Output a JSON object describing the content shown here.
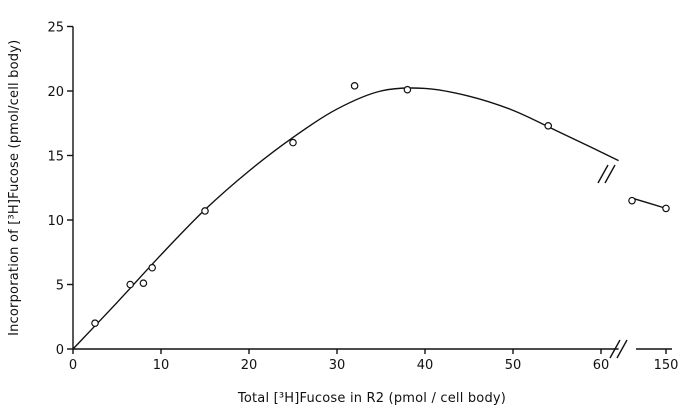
{
  "chart_data": {
    "type": "scatter",
    "xlabel": "Total [³H]Fucose in R2 (pmol / cell body)",
    "ylabel": "Incorporation of [³H]Fucose (pmol/cell body)",
    "ylim": [
      0,
      25
    ],
    "xlim_main": [
      0,
      62
    ],
    "x_break_ticks": [
      150
    ],
    "x_ticks": [
      0,
      10,
      20,
      30,
      40,
      50,
      60
    ],
    "y_ticks": [
      0,
      5,
      10,
      15,
      20,
      25
    ],
    "grid": false,
    "series": [
      {
        "marker": "open-circle",
        "points": [
          {
            "x": 2.5,
            "y": 2.0
          },
          {
            "x": 6.5,
            "y": 5.0
          },
          {
            "x": 8.0,
            "y": 5.1
          },
          {
            "x": 9.0,
            "y": 6.3
          },
          {
            "x": 15.0,
            "y": 10.7
          },
          {
            "x": 25.0,
            "y": 16.0
          },
          {
            "x": 32.0,
            "y": 20.4
          },
          {
            "x": 38.0,
            "y": 20.1
          },
          {
            "x": 54.0,
            "y": 17.3
          },
          {
            "x": 146.0,
            "y": 11.5
          },
          {
            "x": 150.0,
            "y": 10.9
          }
        ]
      }
    ],
    "fitted_curve": {
      "points": [
        {
          "x": 0,
          "y": 0
        },
        {
          "x": 5,
          "y": 3.6
        },
        {
          "x": 10,
          "y": 7.3
        },
        {
          "x": 15,
          "y": 10.8
        },
        {
          "x": 20,
          "y": 13.8
        },
        {
          "x": 25,
          "y": 16.4
        },
        {
          "x": 30,
          "y": 18.6
        },
        {
          "x": 35,
          "y": 20.0
        },
        {
          "x": 40,
          "y": 20.2
        },
        {
          "x": 45,
          "y": 19.6
        },
        {
          "x": 50,
          "y": 18.5
        },
        {
          "x": 55,
          "y": 16.9
        },
        {
          "x": 59,
          "y": 15.6
        },
        {
          "x": 62,
          "y": 14.6
        },
        {
          "x": 146,
          "y": 11.7
        },
        {
          "x": 150,
          "y": 10.9
        }
      ]
    }
  }
}
